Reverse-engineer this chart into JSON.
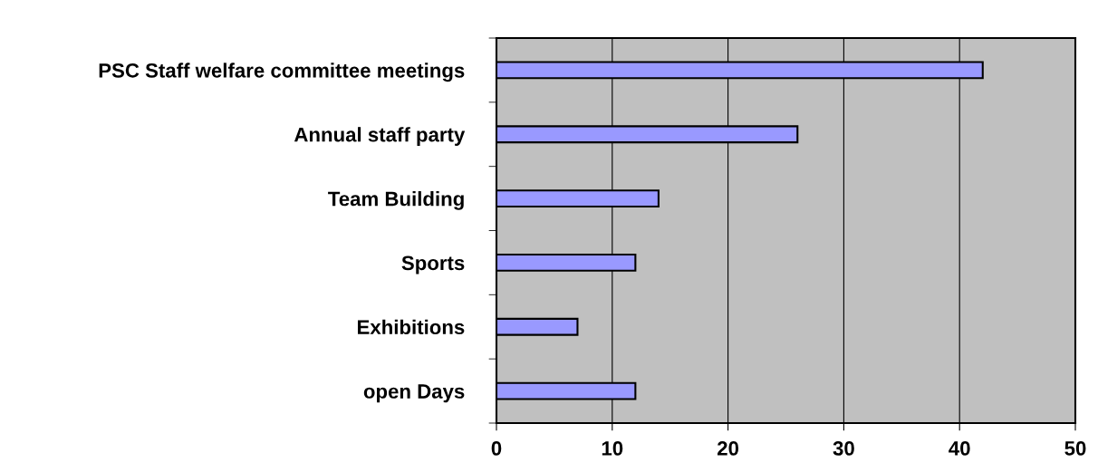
{
  "chart_data": {
    "type": "bar",
    "orientation": "horizontal",
    "categories": [
      "PSC Staff welfare committee meetings",
      "Annual staff party",
      "Team Building",
      "Sports",
      "Exhibitions",
      "open Days"
    ],
    "values": [
      42,
      26,
      14,
      12,
      7,
      12
    ],
    "color": "#9999ff",
    "xlim": [
      0,
      50
    ],
    "xticks": [
      0,
      10,
      20,
      30,
      40,
      50
    ],
    "grid": "x",
    "legend": false
  }
}
